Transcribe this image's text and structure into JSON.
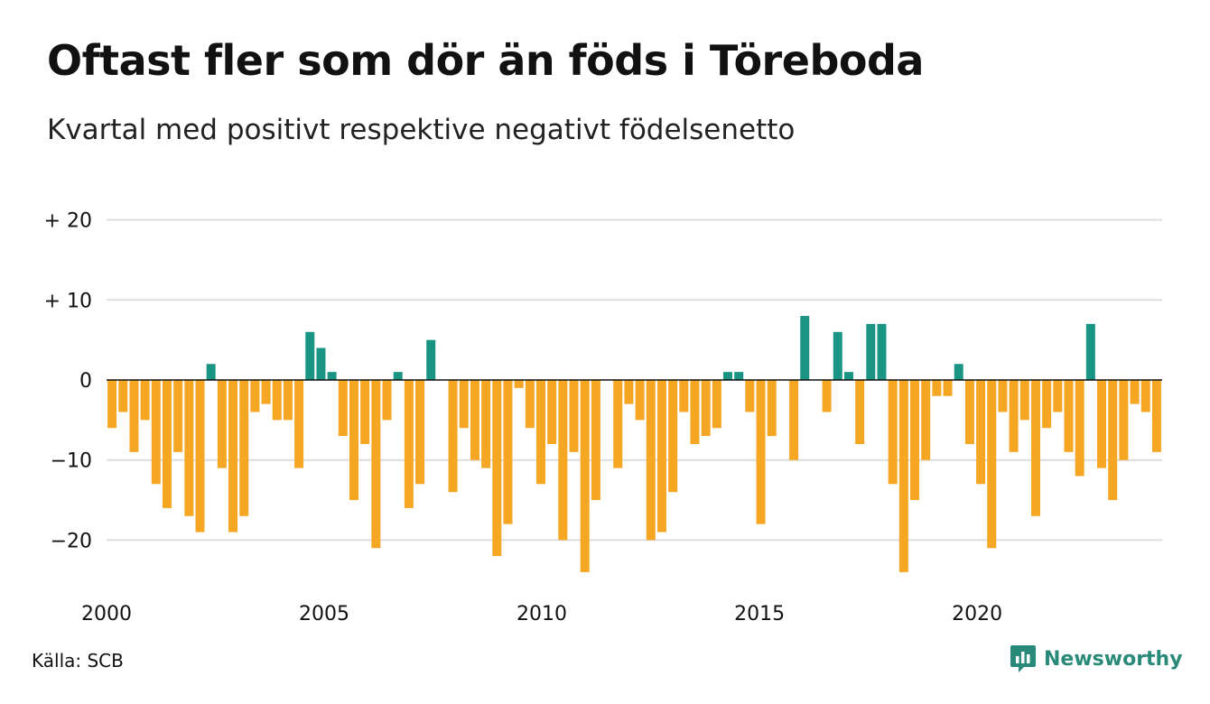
{
  "title": "Oftast fler som dör än föds i Töreboda",
  "subtitle": "Kvartal med positivt respektive negativt födelsenetto",
  "source": "Källa: SCB",
  "brand": {
    "name": "Newsworthy",
    "icon": "newsworthy-logo-icon",
    "color": "#2a8a7a"
  },
  "colors": {
    "positive": "#1a9584",
    "negative": "#f5a623",
    "grid": "#dddddd",
    "zero_line": "#111111"
  },
  "chart_data": {
    "type": "bar",
    "title": "Oftast fler som dör än föds i Töreboda",
    "subtitle": "Kvartal med positivt respektive negativt födelsenetto",
    "xlabel": "",
    "ylabel": "",
    "x_start": 2000,
    "x_end": 2024.25,
    "periods_per_year": 4,
    "ylim": [
      -26,
      22
    ],
    "y_ticks": [
      {
        "value": 20,
        "label": "+ 20"
      },
      {
        "value": 10,
        "label": "+ 10"
      },
      {
        "value": 0,
        "label": "0"
      },
      {
        "value": -10,
        "label": "−10"
      },
      {
        "value": -20,
        "label": "−20"
      }
    ],
    "x_ticks": [
      {
        "value": 2000,
        "label": "2000"
      },
      {
        "value": 2005,
        "label": "2005"
      },
      {
        "value": 2010,
        "label": "2010"
      },
      {
        "value": 2015,
        "label": "2015"
      },
      {
        "value": 2020,
        "label": "2020"
      }
    ],
    "grid": true,
    "legend": "none",
    "series": [
      {
        "values": [
          -6,
          -4,
          -9,
          -5,
          -13,
          -16,
          -9,
          -17,
          -19,
          2,
          -11,
          -19,
          -17,
          -4,
          -3,
          -5,
          -5,
          -11,
          6,
          4,
          1,
          -7,
          -15,
          -8,
          -21,
          -5,
          1,
          -16,
          -13,
          5,
          0,
          -14,
          -6,
          -10,
          -11,
          -22,
          -18,
          -1,
          -6,
          -13,
          -8,
          -20,
          -9,
          -24,
          -15,
          0,
          -11,
          -3,
          -5,
          -20,
          -19,
          -14,
          -4,
          -8,
          -7,
          -6,
          1,
          1,
          -4,
          -18,
          -7,
          0,
          -10,
          8,
          0,
          -4,
          6,
          1,
          -8,
          7,
          7,
          -13,
          -24,
          -15,
          -10,
          -2,
          -2,
          2,
          -8,
          -13,
          -21,
          -4,
          -9,
          -5,
          -17,
          -6,
          -4,
          -9,
          -12,
          7,
          -11,
          -15,
          -10,
          -3,
          -4,
          -9
        ]
      }
    ]
  }
}
